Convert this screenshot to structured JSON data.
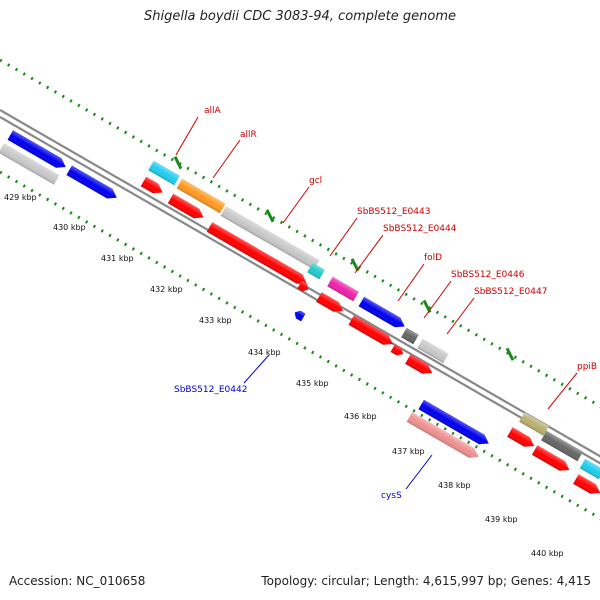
{
  "title": "Shigella boydii CDC 3083-94, complete genome",
  "footer": {
    "accession": "Accession: NC_010658",
    "summary": "Topology: circular; Length: 4,615,997 bp; Genes: 4,415"
  },
  "colors": {
    "background": "#ffffff",
    "backbone": "#888888",
    "tick": "#1a8a1a",
    "top_label": "#cc0000",
    "bottom_label": "#0000cc",
    "cds": "#ff0000",
    "blue": "#0000ee",
    "grey": "#c8c8c8",
    "cyan": "#22ccee",
    "orange": "#ff9922",
    "teal": "#22cccc",
    "magenta": "#ee22aa",
    "darkgrey": "#666666",
    "salmon": "#f09090",
    "olive": "#b8b070"
  },
  "scale": {
    "unit": "kbp",
    "ticks": [
      "429 kbp",
      "430 kbp",
      "431 kbp",
      "432 kbp",
      "433 kbp",
      "434 kbp",
      "435 kbp",
      "436 kbp",
      "437 kbp",
      "438 kbp",
      "439 kbp",
      "440 kbp"
    ]
  },
  "gene_labels": {
    "top": [
      "allA",
      "allR",
      "gcl",
      "SbBS512_E0443",
      "SbBS512_E0444",
      "folD",
      "SbBS512_E0446",
      "SbBS512_E0447",
      "ppiB"
    ],
    "bottom": [
      "SbBS512_E0442",
      "cysS"
    ]
  }
}
